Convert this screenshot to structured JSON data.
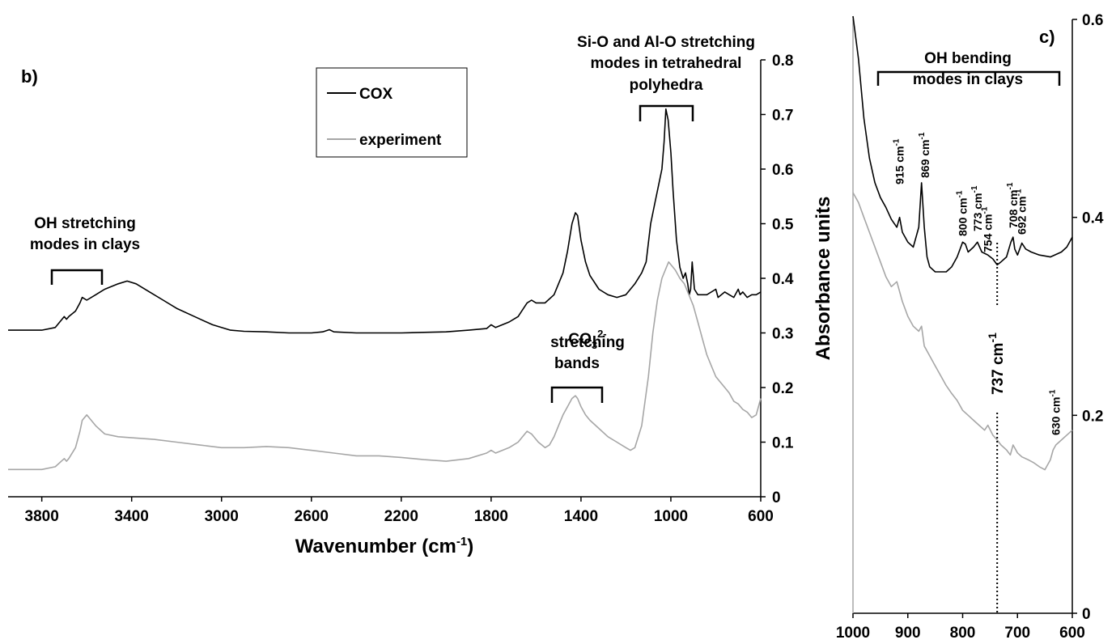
{
  "chart_data": [
    {
      "type": "line",
      "panel_label": "b)",
      "xlabel": "Wavenumber (cm",
      "xlabel_sup": "-1",
      "xlabel_end": ")",
      "ylabel": "Absorbance units",
      "xlim": [
        3950,
        600
      ],
      "ylim": [
        0,
        0.8
      ],
      "x_reversed": true,
      "x_ticks": [
        3800,
        3400,
        3000,
        2600,
        2200,
        1800,
        1400,
        1000,
        600
      ],
      "y_ticks": [
        0,
        0.1,
        0.2,
        0.3,
        0.4,
        0.5,
        0.6,
        0.7,
        0.8
      ],
      "y_axis_side": "right",
      "grid": false,
      "legend": {
        "placement": "top-center",
        "entries": [
          {
            "label": "COX",
            "color": "#000000"
          },
          {
            "label": "experiment",
            "color": "#a6a6a6"
          }
        ]
      },
      "series": [
        {
          "name": "COX",
          "color": "#000000",
          "x": [
            3950,
            3800,
            3740,
            3700,
            3690,
            3680,
            3650,
            3630,
            3620,
            3600,
            3560,
            3520,
            3460,
            3420,
            3380,
            3320,
            3260,
            3200,
            3120,
            3040,
            2960,
            2900,
            2800,
            2700,
            2600,
            2550,
            2520,
            2500,
            2400,
            2300,
            2200,
            2100,
            2000,
            1900,
            1820,
            1800,
            1780,
            1720,
            1680,
            1640,
            1620,
            1600,
            1560,
            1520,
            1480,
            1460,
            1440,
            1425,
            1415,
            1400,
            1380,
            1360,
            1320,
            1280,
            1240,
            1200,
            1160,
            1130,
            1110,
            1090,
            1070,
            1055,
            1040,
            1030,
            1022,
            1012,
            1000,
            990,
            975,
            960,
            945,
            935,
            925,
            918,
            912,
            905,
            895,
            880,
            860,
            840,
            800,
            790,
            775,
            760,
            740,
            720,
            700,
            692,
            680,
            660,
            640,
            620,
            600
          ],
          "y": [
            0.305,
            0.305,
            0.31,
            0.33,
            0.325,
            0.33,
            0.34,
            0.355,
            0.365,
            0.36,
            0.37,
            0.38,
            0.39,
            0.395,
            0.39,
            0.375,
            0.36,
            0.345,
            0.33,
            0.315,
            0.305,
            0.303,
            0.302,
            0.3,
            0.3,
            0.302,
            0.306,
            0.302,
            0.3,
            0.3,
            0.3,
            0.301,
            0.302,
            0.305,
            0.308,
            0.315,
            0.31,
            0.32,
            0.33,
            0.355,
            0.36,
            0.355,
            0.355,
            0.37,
            0.41,
            0.45,
            0.5,
            0.52,
            0.515,
            0.47,
            0.43,
            0.405,
            0.38,
            0.37,
            0.365,
            0.37,
            0.39,
            0.41,
            0.43,
            0.5,
            0.54,
            0.57,
            0.6,
            0.65,
            0.71,
            0.69,
            0.63,
            0.56,
            0.47,
            0.42,
            0.4,
            0.41,
            0.39,
            0.37,
            0.38,
            0.43,
            0.38,
            0.37,
            0.37,
            0.37,
            0.38,
            0.365,
            0.37,
            0.375,
            0.37,
            0.365,
            0.38,
            0.37,
            0.375,
            0.365,
            0.37,
            0.37,
            0.375
          ]
        },
        {
          "name": "experiment",
          "color": "#a6a6a6",
          "x": [
            3950,
            3800,
            3740,
            3700,
            3690,
            3680,
            3650,
            3630,
            3620,
            3600,
            3560,
            3520,
            3460,
            3400,
            3300,
            3200,
            3100,
            3000,
            2900,
            2800,
            2700,
            2600,
            2500,
            2400,
            2300,
            2200,
            2100,
            2000,
            1900,
            1820,
            1800,
            1780,
            1720,
            1680,
            1650,
            1640,
            1620,
            1590,
            1560,
            1540,
            1520,
            1500,
            1480,
            1460,
            1440,
            1425,
            1415,
            1400,
            1380,
            1360,
            1320,
            1280,
            1240,
            1200,
            1180,
            1160,
            1130,
            1100,
            1080,
            1060,
            1040,
            1020,
            1010,
            1000,
            980,
            960,
            940,
            920,
            900,
            880,
            860,
            840,
            820,
            800,
            780,
            760,
            740,
            720,
            700,
            680,
            660,
            640,
            620,
            600
          ],
          "y": [
            0.05,
            0.05,
            0.055,
            0.07,
            0.065,
            0.07,
            0.09,
            0.12,
            0.14,
            0.15,
            0.13,
            0.115,
            0.11,
            0.108,
            0.105,
            0.1,
            0.095,
            0.09,
            0.09,
            0.092,
            0.09,
            0.085,
            0.08,
            0.075,
            0.075,
            0.072,
            0.068,
            0.065,
            0.07,
            0.08,
            0.085,
            0.08,
            0.09,
            0.1,
            0.115,
            0.12,
            0.115,
            0.1,
            0.09,
            0.095,
            0.11,
            0.13,
            0.15,
            0.165,
            0.18,
            0.185,
            0.18,
            0.165,
            0.15,
            0.14,
            0.125,
            0.11,
            0.1,
            0.09,
            0.085,
            0.09,
            0.13,
            0.22,
            0.3,
            0.36,
            0.4,
            0.42,
            0.43,
            0.425,
            0.415,
            0.4,
            0.39,
            0.37,
            0.35,
            0.32,
            0.29,
            0.26,
            0.24,
            0.22,
            0.21,
            0.2,
            0.19,
            0.175,
            0.17,
            0.16,
            0.155,
            0.145,
            0.15,
            0.18
          ]
        }
      ],
      "annotations": {
        "oh_stretch": [
          "OH stretching",
          "modes in clays"
        ],
        "co3_main": "CO",
        "co3_sub": "3",
        "co3_sup": "2-",
        "co3_lines": [
          "stretching",
          "bands"
        ],
        "sio": [
          "Si-O and Al-O stretching",
          "modes in tetrahedral",
          "polyhedra"
        ]
      }
    },
    {
      "type": "line",
      "panel_label": "c)",
      "xlim": [
        1000,
        600
      ],
      "ylim": [
        0,
        0.6
      ],
      "x_reversed": true,
      "x_ticks": [
        1000,
        900,
        800,
        700,
        600
      ],
      "y_ticks": [
        0,
        0.2,
        0.4,
        0.6
      ],
      "y_tick_labels": [
        "0",
        "0.2",
        "0.4",
        "0.6"
      ],
      "y_axis_side": "right",
      "grid": false,
      "series": [
        {
          "color": "#000000",
          "x": [
            1000,
            990,
            980,
            970,
            960,
            950,
            940,
            930,
            920,
            915,
            910,
            900,
            890,
            880,
            875,
            870,
            865,
            860,
            850,
            840,
            830,
            820,
            810,
            800,
            795,
            790,
            780,
            773,
            765,
            754,
            745,
            737,
            730,
            720,
            712,
            708,
            705,
            700,
            692,
            685,
            675,
            660,
            640,
            620,
            610,
            600
          ],
          "y": [
            0.62,
            0.56,
            0.5,
            0.46,
            0.435,
            0.42,
            0.41,
            0.398,
            0.39,
            0.4,
            0.385,
            0.375,
            0.37,
            0.39,
            0.435,
            0.39,
            0.36,
            0.35,
            0.345,
            0.345,
            0.345,
            0.35,
            0.36,
            0.375,
            0.373,
            0.365,
            0.37,
            0.375,
            0.365,
            0.362,
            0.358,
            0.352,
            0.355,
            0.36,
            0.375,
            0.38,
            0.368,
            0.362,
            0.374,
            0.368,
            0.365,
            0.362,
            0.36,
            0.365,
            0.37,
            0.38
          ]
        },
        {
          "color": "#a6a6a6",
          "x": [
            1000,
            990,
            980,
            970,
            960,
            950,
            940,
            930,
            920,
            915,
            910,
            900,
            890,
            880,
            875,
            870,
            860,
            850,
            840,
            830,
            820,
            810,
            800,
            790,
            780,
            770,
            760,
            754,
            745,
            737,
            730,
            720,
            713,
            708,
            700,
            692,
            680,
            670,
            660,
            650,
            640,
            635,
            630,
            620,
            610,
            600
          ],
          "y": [
            0.425,
            0.415,
            0.4,
            0.385,
            0.37,
            0.355,
            0.34,
            0.33,
            0.335,
            0.325,
            0.315,
            0.3,
            0.29,
            0.285,
            0.29,
            0.27,
            0.26,
            0.25,
            0.24,
            0.23,
            0.222,
            0.215,
            0.205,
            0.2,
            0.195,
            0.19,
            0.185,
            0.19,
            0.18,
            0.175,
            0.17,
            0.165,
            0.16,
            0.17,
            0.162,
            0.158,
            0.155,
            0.152,
            0.148,
            0.145,
            0.155,
            0.165,
            0.17,
            0.175,
            0.18,
            0.185
          ]
        }
      ],
      "annotations": {
        "oh_bend": [
          "OH bending",
          "modes in clays"
        ],
        "peaks": [
          {
            "pos": 915,
            "value": "915",
            "unit": "cm",
            "sup": "-1"
          },
          {
            "pos": 869,
            "value": "869",
            "unit": "cm",
            "sup": "-1"
          },
          {
            "pos": 800,
            "value": "800",
            "unit": "cm",
            "sup": "-1"
          },
          {
            "pos": 773,
            "value": "773",
            "unit": "cm",
            "sup": "-1"
          },
          {
            "pos": 754,
            "value": "754",
            "unit": "cm",
            "sup": "-1"
          },
          {
            "pos": 708,
            "value": "708",
            "unit": "cm",
            "sup": "-1"
          },
          {
            "pos": 692,
            "value": "692",
            "unit": "cm",
            "sup": "-1"
          },
          {
            "pos": 630,
            "value": "630",
            "unit": "cm",
            "sup": "-1"
          }
        ],
        "marker": {
          "pos": 737,
          "value": "737",
          "unit": "cm",
          "sup": "-1"
        }
      }
    }
  ]
}
